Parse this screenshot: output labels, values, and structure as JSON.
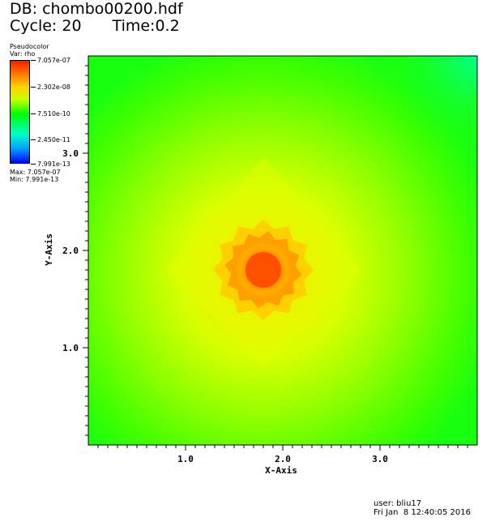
{
  "header": {
    "db_label": "DB: chombo00200.hdf",
    "cycle_label": "Cycle: 20",
    "time_label": "Time:0.2"
  },
  "legend": {
    "plot_type": "Pseudocolor",
    "var_label": "Var: rho",
    "ticks": [
      "7.057e-07",
      "2.302e-08",
      "7.510e-10",
      "2.450e-11",
      "7.991e-13"
    ],
    "max_label": "Max: 7.057e-07",
    "min_label": "Min: 7.991e-13",
    "colors": [
      "#ff0000",
      "#ffff00",
      "#00ff00",
      "#00ffff",
      "#0000ff"
    ]
  },
  "chart_data": {
    "type": "heatmap",
    "xlabel": "X-Axis",
    "ylabel": "Y-Axis",
    "xlim": [
      0.0,
      4.0
    ],
    "ylim": [
      0.0,
      4.0
    ],
    "x_ticks": [
      "1.0",
      "2.0",
      "3.0"
    ],
    "y_ticks": [
      "1.0",
      "2.0",
      "3.0"
    ],
    "x_tick_values": [
      1.0,
      2.0,
      3.0
    ],
    "y_tick_values": [
      1.0,
      2.0,
      3.0
    ],
    "variable": "rho",
    "scale": "log",
    "value_range": [
      7.991e-13,
      7.057e-07
    ],
    "peak": {
      "x": 1.8,
      "y": 1.8,
      "value": 7.057e-07
    },
    "background_level": 7.51e-10,
    "colors": {
      "max": "#ff4000",
      "high": "#ffc800",
      "mid": "#b4ff00",
      "low": "#20ff00",
      "edge": "#00ff80"
    }
  },
  "footer": {
    "user": "user: bliu17",
    "date": "Fri Jan  8 12:40:05 2016"
  }
}
